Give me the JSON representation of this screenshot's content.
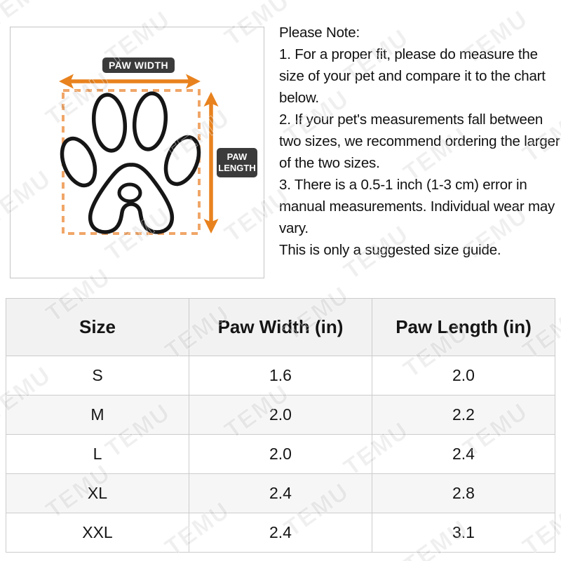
{
  "watermark": {
    "text": "TEMU"
  },
  "diagram": {
    "paw_width_label": "PAW WIDTH",
    "paw_length_label": "PAW LENGTH"
  },
  "note": {
    "title": "Please Note:",
    "items": [
      "1. For a proper fit, please do measure the size of your pet and compare it to the chart below.",
      "2. If your pet's measurements fall between two sizes, we recommend ordering the larger of the two sizes.",
      "3. There is a 0.5-1 inch (1-3 cm) error in manual measurements. Individual wear may vary."
    ],
    "footer": "This is only a suggested size guide."
  },
  "size_chart": {
    "columns": [
      "Size",
      "Paw Width (in)",
      "Paw Length (in)"
    ],
    "rows": [
      {
        "size": "S",
        "paw_width_in": "1.6",
        "paw_length_in": "2.0"
      },
      {
        "size": "M",
        "paw_width_in": "2.0",
        "paw_length_in": "2.2"
      },
      {
        "size": "L",
        "paw_width_in": "2.0",
        "paw_length_in": "2.4"
      },
      {
        "size": "XL",
        "paw_width_in": "2.4",
        "paw_length_in": "2.8"
      },
      {
        "size": "XXL",
        "paw_width_in": "2.4",
        "paw_length_in": "3.1"
      }
    ]
  },
  "colors": {
    "arrow_orange": "#e8821e",
    "dashed_orange": "#f0a668",
    "label_dark": "#3b3b3b",
    "paw_stroke": "#161616",
    "box_border": "#c4c4c4",
    "table_border": "#cccccc",
    "table_outer_border": "#b3b3b3",
    "header_bg": "#f2f2f2",
    "stripe_bg": "#f6f6f6"
  }
}
